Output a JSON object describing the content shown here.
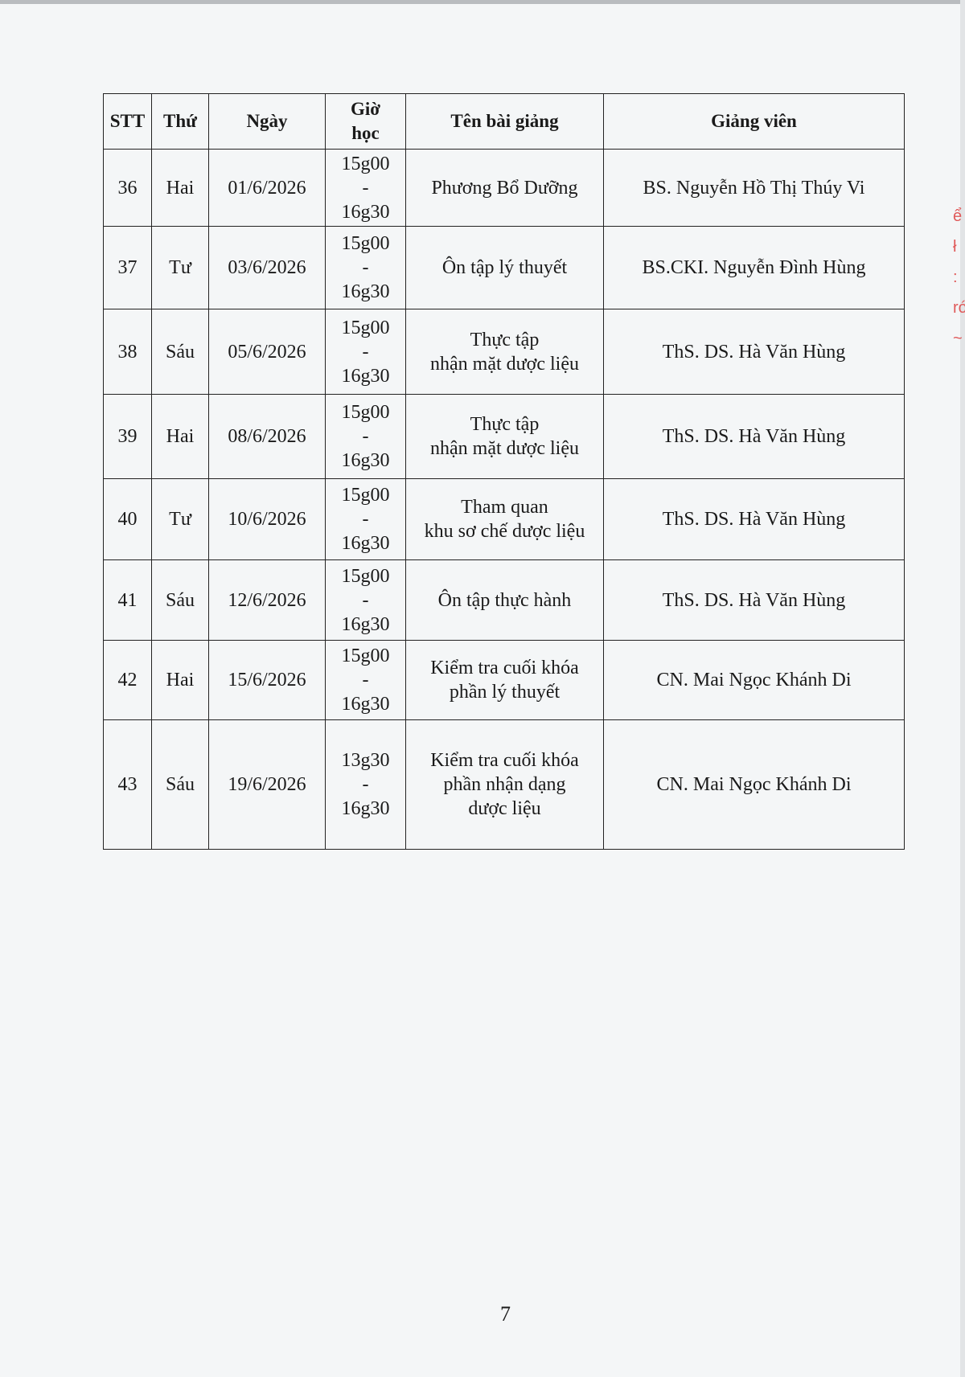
{
  "table": {
    "headers": [
      "STT",
      "Thứ",
      "Ngày",
      "Giờ học",
      "Tên bài giảng",
      "Giảng viên"
    ],
    "rows": [
      {
        "stt": "36",
        "thu": "Hai",
        "ngay": "01/6/2026",
        "gio_start": "15g00",
        "gio_sep": "-",
        "gio_end": "16g30",
        "bai": [
          "Phương Bổ Dưỡng"
        ],
        "gv": "BS. Nguyễn Hồ Thị Thúy Vi"
      },
      {
        "stt": "37",
        "thu": "Tư",
        "ngay": "03/6/2026",
        "gio_start": "15g00",
        "gio_sep": "-",
        "gio_end": "16g30",
        "bai": [
          "Ôn tập lý thuyết"
        ],
        "gv": "BS.CKI. Nguyễn Đình Hùng"
      },
      {
        "stt": "38",
        "thu": "Sáu",
        "ngay": "05/6/2026",
        "gio_start": "15g00",
        "gio_sep": "-",
        "gio_end": "16g30",
        "bai": [
          "Thực tập",
          "nhận mặt dược liệu"
        ],
        "gv": "ThS. DS. Hà Văn Hùng"
      },
      {
        "stt": "39",
        "thu": "Hai",
        "ngay": "08/6/2026",
        "gio_start": "15g00",
        "gio_sep": "-",
        "gio_end": "16g30",
        "bai": [
          "Thực tập",
          "nhận mặt dược liệu"
        ],
        "gv": "ThS. DS. Hà Văn Hùng"
      },
      {
        "stt": "40",
        "thu": "Tư",
        "ngay": "10/6/2026",
        "gio_start": "15g00",
        "gio_sep": "-",
        "gio_end": "16g30",
        "bai": [
          "Tham quan",
          "khu sơ chế dược liệu"
        ],
        "gv": "ThS. DS. Hà Văn Hùng"
      },
      {
        "stt": "41",
        "thu": "Sáu",
        "ngay": "12/6/2026",
        "gio_start": "15g00",
        "gio_sep": "-",
        "gio_end": "16g30",
        "bai": [
          "Ôn tập thực hành"
        ],
        "gv": "ThS. DS. Hà Văn Hùng"
      },
      {
        "stt": "42",
        "thu": "Hai",
        "ngay": "15/6/2026",
        "gio_start": "15g00",
        "gio_sep": "-",
        "gio_end": "16g30",
        "bai": [
          "Kiểm tra cuối khóa",
          "phần lý thuyết"
        ],
        "gv": "CN. Mai Ngọc Khánh Di"
      },
      {
        "stt": "43",
        "thu": "Sáu",
        "ngay": "19/6/2026",
        "gio_start": "13g30",
        "gio_sep": "-",
        "gio_end": "16g30",
        "bai": [
          "Kiểm tra cuối khóa",
          "phần nhận dạng",
          "dược liệu"
        ],
        "gv": "CN. Mai Ngọc Khánh Di"
      }
    ]
  },
  "page_number": "7",
  "colors": {
    "paper": "#f4f6f7",
    "ink": "#1a1a1a",
    "stamp": "#e05a5a"
  }
}
